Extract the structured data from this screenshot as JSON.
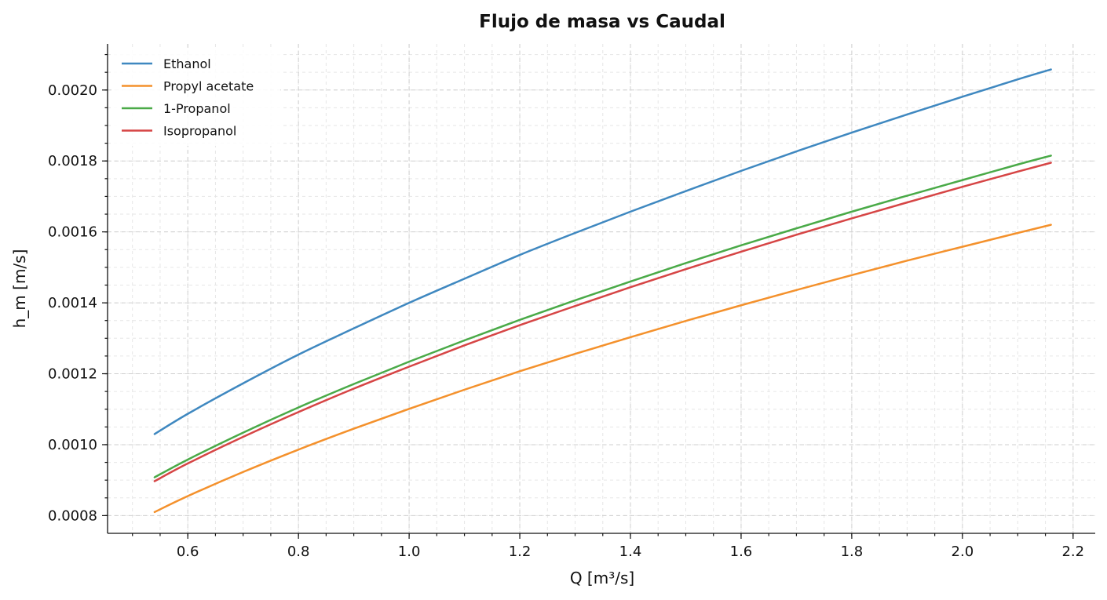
{
  "chart_data": {
    "type": "line",
    "title": "Flujo de masa vs Caudal",
    "xlabel": "Q [m³/s]",
    "ylabel": "h_m [m/s]",
    "xlim": [
      0.455,
      2.24
    ],
    "ylim": [
      0.00075,
      0.00213
    ],
    "xticks": [
      0.6,
      0.8,
      1.0,
      1.2,
      1.4,
      1.6,
      1.8,
      2.0,
      2.2
    ],
    "xtick_labels": [
      "0.6",
      "0.8",
      "1.0",
      "1.2",
      "1.4",
      "1.6",
      "1.8",
      "2.0",
      "2.2"
    ],
    "yticks": [
      0.0008,
      0.001,
      0.0012,
      0.0014,
      0.0016,
      0.0018,
      0.002
    ],
    "ytick_labels": [
      "0.0008",
      "0.0010",
      "0.0012",
      "0.0014",
      "0.0016",
      "0.0018",
      "0.0020"
    ],
    "grid": true,
    "legend_position": "top-left",
    "x": [
      0.54,
      0.6,
      0.7,
      0.8,
      0.9,
      1.0,
      1.1,
      1.2,
      1.3,
      1.4,
      1.5,
      1.6,
      1.7,
      1.8,
      1.9,
      2.0,
      2.1,
      2.16
    ],
    "series": [
      {
        "name": "Ethanol",
        "color": "#3f88c0",
        "values": [
          0.00103,
          0.001087,
          0.001173,
          0.001254,
          0.001328,
          0.0014,
          0.001468,
          0.001535,
          0.001597,
          0.001657,
          0.001715,
          0.001772,
          0.001827,
          0.00188,
          0.001931,
          0.001981,
          0.00203,
          0.002058
        ]
      },
      {
        "name": "Propyl acetate",
        "color": "#f4912c",
        "values": [
          0.00081,
          0.000855,
          0.000923,
          0.000986,
          0.001045,
          0.001101,
          0.001155,
          0.001207,
          0.001256,
          0.001303,
          0.001349,
          0.001393,
          0.001436,
          0.001478,
          0.001519,
          0.001558,
          0.001597,
          0.00162
        ]
      },
      {
        "name": "1-Propanol",
        "color": "#4aaa48",
        "values": [
          0.000908,
          0.000958,
          0.001034,
          0.001105,
          0.001171,
          0.001234,
          0.001294,
          0.001352,
          0.001407,
          0.00146,
          0.001512,
          0.001562,
          0.00161,
          0.001657,
          0.001702,
          0.001746,
          0.00179,
          0.001815
        ]
      },
      {
        "name": "Isopropanol",
        "color": "#d64545",
        "values": [
          0.000897,
          0.000947,
          0.001022,
          0.001092,
          0.001158,
          0.00122,
          0.00128,
          0.001337,
          0.001391,
          0.001444,
          0.001495,
          0.001544,
          0.001592,
          0.001638,
          0.001683,
          0.001727,
          0.00177,
          0.001795
        ]
      }
    ]
  }
}
